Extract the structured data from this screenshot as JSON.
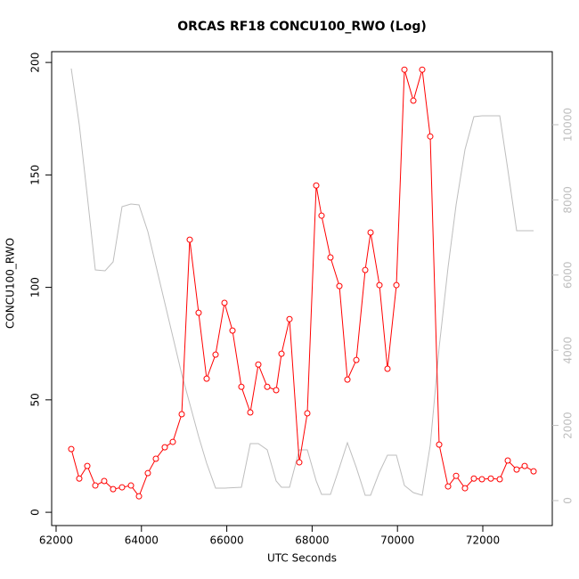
{
  "chart_data": {
    "type": "line",
    "title": "ORCAS RF18 CONCU100_RWO (Log)",
    "x_label": "UTC Seconds",
    "y_label": "CONCU100_RWO",
    "xlim": [
      61896,
      73628
    ],
    "ylim": [
      -5.9,
      204.8
    ],
    "y2lim": [
      -664,
      11943
    ],
    "xticks": [
      62000,
      64000,
      66000,
      68000,
      70000,
      72000
    ],
    "yticks": [
      0,
      50,
      100,
      150,
      200
    ],
    "y2ticks": [
      0,
      2000,
      4000,
      6000,
      8000,
      10000
    ],
    "y2_color": "#bebebe",
    "series": [
      {
        "color": "#ff0000",
        "markers": true,
        "x": [
          62355,
          62543,
          62731,
          62919,
          63127,
          63336,
          63545,
          63754,
          63942,
          64150,
          64338,
          64547,
          64735,
          64944,
          65132,
          65340,
          65528,
          65737,
          65946,
          66134,
          66342,
          66551,
          66739,
          66948,
          67157,
          67282,
          67470,
          67699,
          67887,
          68096,
          68221,
          68430,
          68639,
          68827,
          69036,
          69244,
          69370,
          69578,
          69766,
          69975,
          70163,
          70372,
          70580,
          70768,
          70977,
          71186,
          71374,
          71582,
          71791,
          71979,
          72188,
          72397,
          72585,
          72793,
          72981,
          73190
        ],
        "values": [
          28.1,
          15.0,
          20.6,
          11.9,
          13.9,
          10.3,
          11.1,
          11.9,
          7.1,
          17.4,
          23.8,
          28.9,
          31.3,
          43.6,
          121.2,
          88.7,
          59.4,
          70.1,
          93.1,
          80.8,
          55.8,
          44.4,
          65.7,
          55.8,
          54.3,
          70.5,
          85.9,
          22.2,
          44.0,
          145.3,
          131.9,
          113.3,
          100.6,
          59.0,
          67.7,
          107.7,
          124.4,
          101.0,
          63.8,
          101.0,
          196.8,
          183.0,
          196.8,
          167.1,
          30.1,
          11.5,
          16.2,
          10.7,
          15.0,
          14.7,
          15.0,
          14.7,
          23.0,
          19.0,
          20.6,
          18.2
        ]
      },
      {
        "color": "#bebebe",
        "axis": "y2",
        "markers": false,
        "x": [
          62355,
          62543,
          62731,
          62919,
          63148,
          63336,
          63545,
          63754,
          63942,
          64150,
          64547,
          64944,
          65340,
          65528,
          65737,
          65946,
          66342,
          66551,
          66739,
          66948,
          67157,
          67282,
          67470,
          67699,
          67887,
          68096,
          68221,
          68430,
          68639,
          68827,
          69036,
          69244,
          69370,
          69578,
          69766,
          69975,
          70163,
          70372,
          70580,
          70768,
          70977,
          71186,
          71374,
          71582,
          71791,
          71979,
          72397,
          72585,
          72793,
          73190
        ],
        "values": [
          11493,
          10000,
          8104,
          6137,
          6114,
          6351,
          7820,
          7891,
          7867,
          7156,
          5261,
          3365,
          1706,
          995,
          332,
          332,
          355,
          1517,
          1517,
          1351,
          521,
          355,
          355,
          1351,
          1351,
          521,
          166,
          166,
          877,
          1540,
          877,
          142,
          142,
          758,
          1209,
          1209,
          403,
          213,
          142,
          1469,
          4076,
          6209,
          7867,
          9336,
          10213,
          10237,
          10237,
          8815,
          7180,
          7180
        ]
      }
    ]
  }
}
